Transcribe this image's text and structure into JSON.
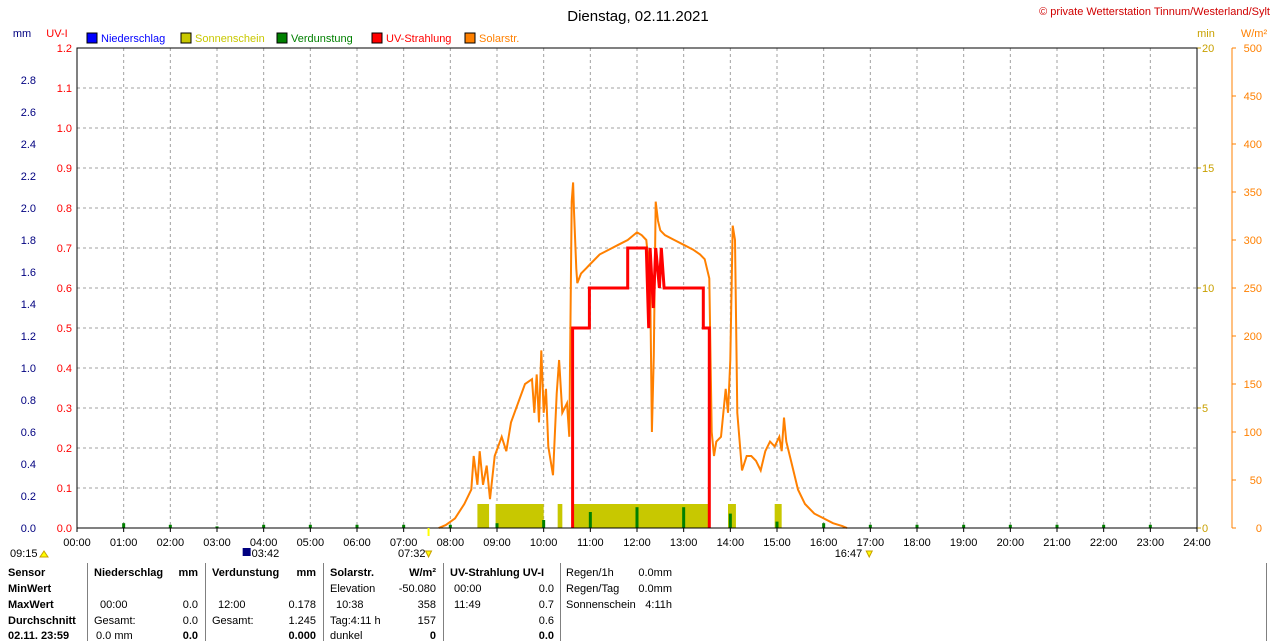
{
  "header": {
    "title": "Dienstag, 02.11.2021",
    "copyright": "© private Wetterstation Tinnum/Westerland/Sylt"
  },
  "legend": [
    {
      "label": "Niederschlag",
      "color": "#0000ff"
    },
    {
      "label": "Sonnenschein",
      "color": "#c8c800"
    },
    {
      "label": "Verdunstung",
      "color": "#008000"
    },
    {
      "label": "UV-Strahlung",
      "color": "#ff0000"
    },
    {
      "label": "Solarstr.",
      "color": "#ff8000"
    }
  ],
  "axes": {
    "left_mm_unit": "mm",
    "left_uv_unit": "UV-I",
    "right_min_unit": "min",
    "right_wm2_unit": "W/m²",
    "mm_ticks": [
      "0.0",
      "0.2",
      "0.4",
      "0.6",
      "0.8",
      "1.0",
      "1.2",
      "1.4",
      "1.6",
      "1.8",
      "2.0",
      "2.2",
      "2.4",
      "2.6",
      "2.8"
    ],
    "uv_ticks": [
      "0.0",
      "0.1",
      "0.2",
      "0.3",
      "0.4",
      "0.5",
      "0.6",
      "0.7",
      "0.8",
      "0.9",
      "1.0",
      "1.1",
      "1.2"
    ],
    "min_ticks": [
      "0",
      "5",
      "10",
      "15",
      "20"
    ],
    "wm2_ticks": [
      "0",
      "50",
      "100",
      "150",
      "200",
      "250",
      "300",
      "350",
      "400",
      "450",
      "500"
    ],
    "x_ticks": [
      "00:00",
      "01:00",
      "02:00",
      "03:00",
      "04:00",
      "05:00",
      "06:00",
      "07:00",
      "08:00",
      "09:00",
      "10:00",
      "11:00",
      "12:00",
      "13:00",
      "14:00",
      "15:00",
      "16:00",
      "17:00",
      "18:00",
      "19:00",
      "20:00",
      "21:00",
      "22:00",
      "23:00",
      "24:00"
    ],
    "x_range_hours": [
      0,
      24
    ]
  },
  "markers": {
    "moonset": "09:15",
    "moonrise": "03:42",
    "sunrise": "07:32",
    "sunset": "16:47"
  },
  "chart_data": {
    "type": "line",
    "title": "Dienstag, 02.11.2021",
    "x_unit": "hours",
    "series": [
      {
        "name": "Solarstr.",
        "axis": "W/m²",
        "ylim": [
          0,
          500
        ],
        "points": [
          [
            7.75,
            0
          ],
          [
            7.9,
            3
          ],
          [
            8.1,
            10
          ],
          [
            8.3,
            25
          ],
          [
            8.45,
            40
          ],
          [
            8.5,
            75
          ],
          [
            8.58,
            45
          ],
          [
            8.63,
            80
          ],
          [
            8.7,
            45
          ],
          [
            8.78,
            65
          ],
          [
            8.85,
            30
          ],
          [
            8.95,
            75
          ],
          [
            9.1,
            95
          ],
          [
            9.2,
            80
          ],
          [
            9.3,
            110
          ],
          [
            9.45,
            130
          ],
          [
            9.6,
            150
          ],
          [
            9.75,
            155
          ],
          [
            9.8,
            120
          ],
          [
            9.85,
            160
          ],
          [
            9.9,
            110
          ],
          [
            9.95,
            185
          ],
          [
            10.0,
            120
          ],
          [
            10.05,
            145
          ],
          [
            10.1,
            85
          ],
          [
            10.2,
            55
          ],
          [
            10.28,
            140
          ],
          [
            10.33,
            175
          ],
          [
            10.4,
            120
          ],
          [
            10.5,
            130
          ],
          [
            10.55,
            95
          ],
          [
            10.6,
            340
          ],
          [
            10.63,
            360
          ],
          [
            10.65,
            330
          ],
          [
            10.7,
            270
          ],
          [
            10.72,
            255
          ],
          [
            10.8,
            265
          ],
          [
            10.9,
            270
          ],
          [
            11.0,
            275
          ],
          [
            11.2,
            285
          ],
          [
            11.4,
            290
          ],
          [
            11.6,
            295
          ],
          [
            11.8,
            300
          ],
          [
            12.0,
            308
          ],
          [
            12.1,
            305
          ],
          [
            12.2,
            300
          ],
          [
            12.28,
            260
          ],
          [
            12.32,
            100
          ],
          [
            12.36,
            180
          ],
          [
            12.4,
            340
          ],
          [
            12.45,
            320
          ],
          [
            12.5,
            310
          ],
          [
            12.6,
            305
          ],
          [
            12.8,
            300
          ],
          [
            13.0,
            295
          ],
          [
            13.2,
            290
          ],
          [
            13.35,
            285
          ],
          [
            13.45,
            280
          ],
          [
            13.55,
            260
          ],
          [
            13.6,
            100
          ],
          [
            13.65,
            75
          ],
          [
            13.7,
            90
          ],
          [
            13.8,
            95
          ],
          [
            13.9,
            145
          ],
          [
            13.95,
            120
          ],
          [
            14.0,
            175
          ],
          [
            14.05,
            315
          ],
          [
            14.1,
            300
          ],
          [
            14.15,
            120
          ],
          [
            14.25,
            60
          ],
          [
            14.35,
            75
          ],
          [
            14.45,
            75
          ],
          [
            14.55,
            70
          ],
          [
            14.65,
            60
          ],
          [
            14.75,
            80
          ],
          [
            14.85,
            90
          ],
          [
            14.95,
            85
          ],
          [
            15.05,
            95
          ],
          [
            15.1,
            80
          ],
          [
            15.15,
            115
          ],
          [
            15.2,
            90
          ],
          [
            15.3,
            70
          ],
          [
            15.45,
            40
          ],
          [
            15.6,
            25
          ],
          [
            15.8,
            15
          ],
          [
            16.0,
            10
          ],
          [
            16.2,
            5
          ],
          [
            16.4,
            2
          ],
          [
            16.5,
            0
          ]
        ]
      },
      {
        "name": "UV-Strahlung",
        "axis": "UV-I",
        "ylim": [
          0,
          1.2
        ],
        "points": [
          [
            10.62,
            0
          ],
          [
            10.62,
            0.5
          ],
          [
            10.98,
            0.5
          ],
          [
            10.98,
            0.6
          ],
          [
            11.8,
            0.6
          ],
          [
            11.8,
            0.7
          ],
          [
            12.2,
            0.7
          ],
          [
            12.25,
            0.5
          ],
          [
            12.28,
            0.7
          ],
          [
            12.35,
            0.55
          ],
          [
            12.4,
            0.7
          ],
          [
            12.48,
            0.6
          ],
          [
            12.52,
            0.7
          ],
          [
            12.58,
            0.6
          ],
          [
            12.62,
            0.6
          ],
          [
            12.62,
            0.6
          ],
          [
            13.42,
            0.6
          ],
          [
            13.42,
            0.5
          ],
          [
            13.55,
            0.5
          ],
          [
            13.55,
            0
          ]
        ]
      },
      {
        "name": "Sonnenschein",
        "axis": "min",
        "ylim": [
          0,
          20
        ],
        "bars": [
          [
            8.58,
            8.83,
            1
          ],
          [
            8.97,
            10.0,
            1
          ],
          [
            10.3,
            10.4,
            1
          ],
          [
            10.6,
            13.55,
            1
          ],
          [
            13.95,
            14.12,
            1
          ],
          [
            14.95,
            15.1,
            1
          ]
        ]
      },
      {
        "name": "Verdunstung",
        "axis": "mm",
        "ylim": [
          0,
          3
        ],
        "bars": [
          [
            1.0,
            0.03
          ],
          [
            2.0,
            0.02
          ],
          [
            3.0,
            0.01
          ],
          [
            4.0,
            0.02
          ],
          [
            5.0,
            0.02
          ],
          [
            6.0,
            0.02
          ],
          [
            7.0,
            0.02
          ],
          [
            8.0,
            0.02
          ],
          [
            9.0,
            0.03
          ],
          [
            10.0,
            0.05
          ],
          [
            11.0,
            0.1
          ],
          [
            12.0,
            0.13
          ],
          [
            13.0,
            0.13
          ],
          [
            14.0,
            0.09
          ],
          [
            15.0,
            0.04
          ],
          [
            16.0,
            0.03
          ],
          [
            17.0,
            0.02
          ],
          [
            18.0,
            0.02
          ],
          [
            19.0,
            0.02
          ],
          [
            20.0,
            0.02
          ],
          [
            21.0,
            0.02
          ],
          [
            22.0,
            0.02
          ],
          [
            23.0,
            0.02
          ]
        ]
      }
    ]
  },
  "stats": {
    "sensor": {
      "h": "Sensor",
      "r1": "MinWert",
      "r2": "MaxWert",
      "r3": "Durchschnitt",
      "r4": "02.11. 23:59"
    },
    "niederschlag": {
      "h": "Niederschlag",
      "u": "mm",
      "r2a": "00:00",
      "r2b": "0.0",
      "r3a": "Gesamt:",
      "r3b": "0.0",
      "r4a": "0.0 mm",
      "r4b": "0.0"
    },
    "verdunstung": {
      "h": "Verdunstung",
      "u": "mm",
      "r2a": "12:00",
      "r2b": "0.178",
      "r3a": "Gesamt:",
      "r3b": "1.245",
      "r4b": "0.000"
    },
    "solar": {
      "h": "Solarstr.",
      "u": "W/m²",
      "r1a": "Elevation",
      "r1b": "-50.080",
      "r2a": "10:38",
      "r2b": "358",
      "r3a": "Tag:4:11 h",
      "r3b": "157",
      "r4a": "dunkel",
      "r4b": "0"
    },
    "uv": {
      "h": "UV-Strahlung UV-I",
      "r1a": "00:00",
      "r1b": "0.0",
      "r2a": "11:49",
      "r2b": "0.7",
      "r3b": "0.6",
      "r4b": "0.0"
    },
    "regen": {
      "r1a": "Regen/1h",
      "r1b": "0.0mm",
      "r2a": "Regen/Tag",
      "r2b": "0.0mm",
      "r3a": "Sonnenschein",
      "r3b": "4:11h"
    }
  }
}
